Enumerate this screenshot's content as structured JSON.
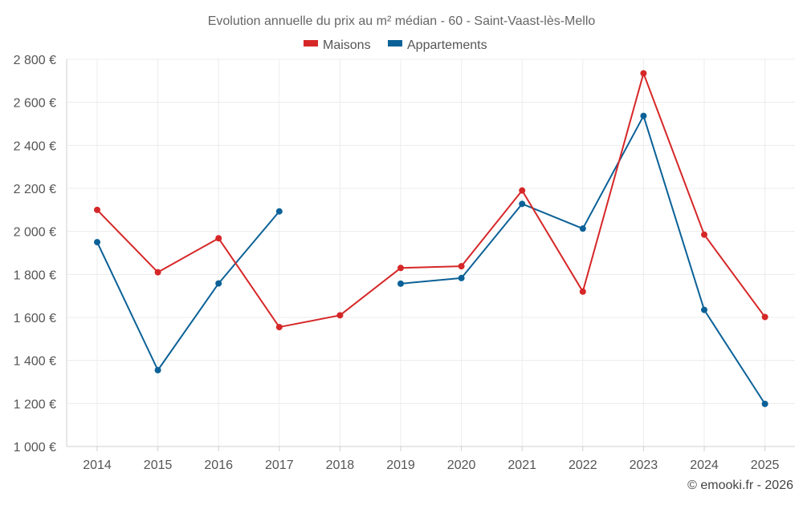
{
  "chart_data": {
    "type": "line",
    "title": "Evolution annuelle du prix au m² médian - 60 - Saint-Vaast-lès-Mello",
    "categories": [
      "2014",
      "2015",
      "2016",
      "2017",
      "2018",
      "2019",
      "2020",
      "2021",
      "2022",
      "2023",
      "2024",
      "2025"
    ],
    "ylim": [
      1000,
      2800
    ],
    "yticks": [
      1000,
      1200,
      1400,
      1600,
      1800,
      2000,
      2200,
      2400,
      2600,
      2800
    ],
    "ytick_labels": [
      "1 000 €",
      "1 200 €",
      "1 400 €",
      "1 600 €",
      "1 800 €",
      "2 000 €",
      "2 200 €",
      "2 400 €",
      "2 600 €",
      "2 800 €"
    ],
    "grid": true,
    "legend_position": "top-center",
    "series": [
      {
        "name": "Maisons",
        "color": "#d62728",
        "values": [
          2100,
          1810,
          1968,
          1555,
          1610,
          1830,
          1838,
          2190,
          1720,
          2735,
          1985,
          1602
        ]
      },
      {
        "name": "Appartements",
        "color": "#0b6197",
        "values": [
          1950,
          1355,
          1758,
          2093,
          null,
          1757,
          1783,
          2128,
          2013,
          2537,
          1635,
          1198
        ]
      }
    ],
    "credit": "© emooki.fr - 2026"
  }
}
